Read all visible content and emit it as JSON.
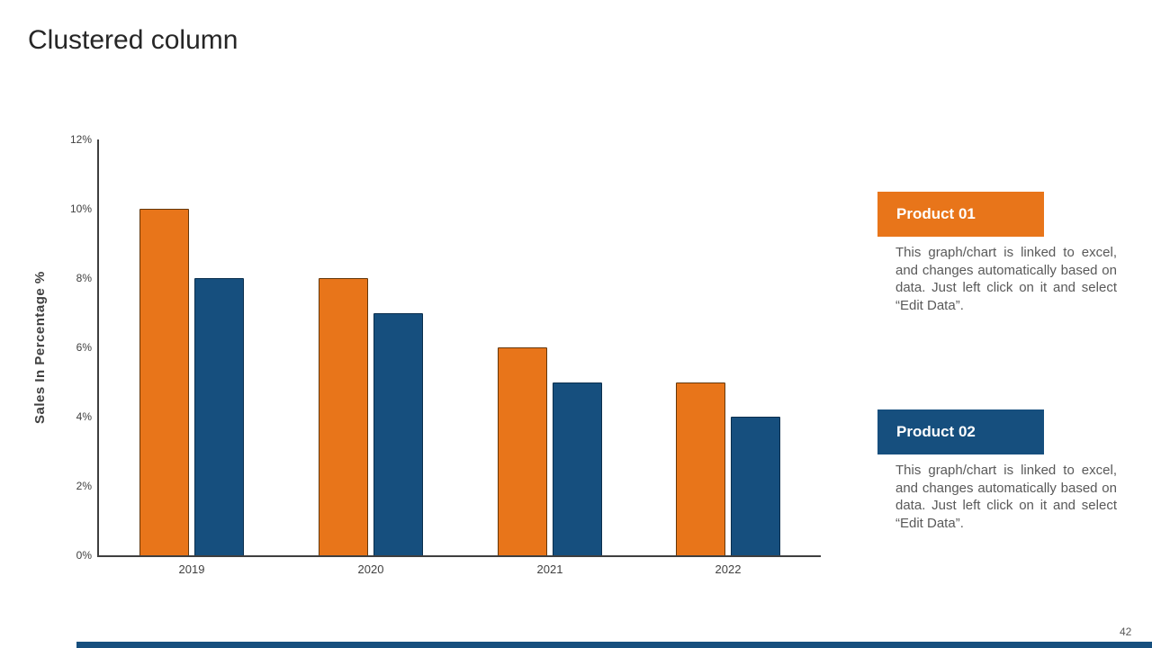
{
  "slide": {
    "title": "Clustered column",
    "page_number": "42"
  },
  "colors": {
    "product1": "#E8751A",
    "product2": "#164F7E",
    "axis": "#3f3f3f",
    "text_gray": "#595959"
  },
  "chart_data": {
    "type": "bar",
    "title": "",
    "categories": [
      "2019",
      "2020",
      "2021",
      "2022"
    ],
    "series": [
      {
        "name": "Product 01",
        "color_key": "product1",
        "values": [
          10,
          8,
          6,
          5
        ]
      },
      {
        "name": "Product 02",
        "color_key": "product2",
        "values": [
          8,
          7,
          5,
          4
        ]
      }
    ],
    "xlabel": "",
    "ylabel": "Sales In Percentage %",
    "ylim": [
      0,
      12
    ],
    "yticks": [
      "12%",
      "10%",
      "8%",
      "6%",
      "4%",
      "2%",
      "0%"
    ],
    "ytick_values": [
      12,
      10,
      8,
      6,
      4,
      2,
      0
    ],
    "grid": false,
    "legend_position": "right-panel"
  },
  "panel": {
    "product1": {
      "label": "Product 01",
      "description": "This graph/chart is linked to excel, and changes automatically based on data. Just left click on it and select “Edit Data”."
    },
    "product2": {
      "label": "Product 02",
      "description": "This graph/chart is linked to excel, and changes automatically based on data. Just left click on it and select “Edit Data”."
    }
  }
}
